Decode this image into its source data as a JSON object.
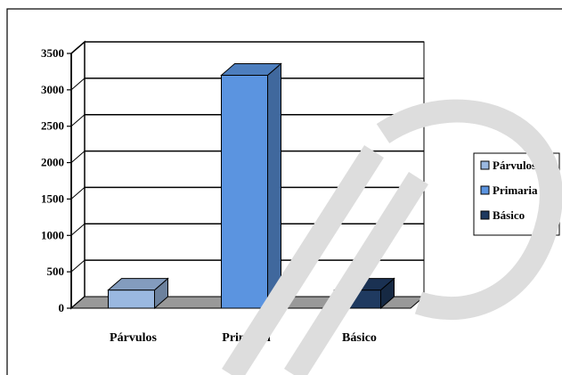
{
  "chart_data": {
    "type": "bar",
    "categories": [
      "Párvulos",
      "Primaria",
      "Básico"
    ],
    "values": [
      250,
      3200,
      250
    ],
    "xlabel": "",
    "ylabel": "",
    "ylim": [
      0,
      3500
    ],
    "yticks": [
      0,
      500,
      1000,
      1500,
      2000,
      2500,
      3000,
      3500
    ],
    "grid": true,
    "legend": {
      "position": "right",
      "entries": [
        "Párvulos",
        "Primaria",
        "Básico"
      ]
    },
    "colors": {
      "Párvulos": "#9ab8e0",
      "Primaria": "#5b94e0",
      "Básico": "#1f3a60"
    },
    "style": "3d-column"
  }
}
